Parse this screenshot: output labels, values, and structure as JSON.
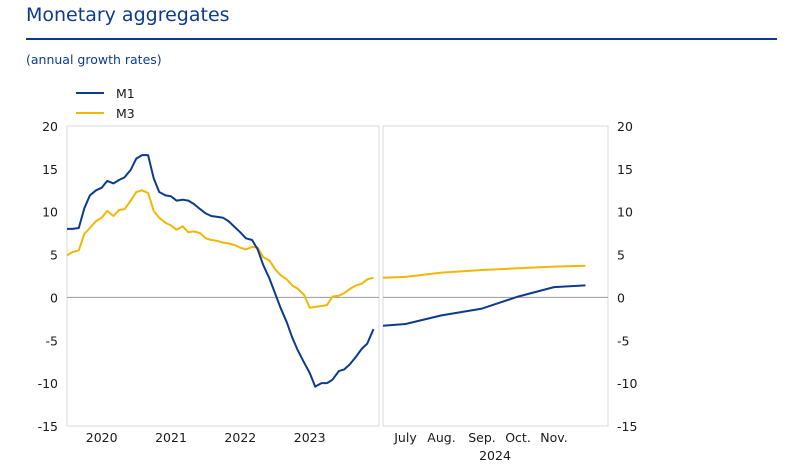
{
  "title": "Monetary aggregates",
  "subtitle": "(annual growth rates)",
  "chart_data": {
    "type": "line",
    "ylim": [
      -15,
      20
    ],
    "y_ticks": [
      20,
      15,
      10,
      5,
      0,
      -5,
      -10,
      -15
    ],
    "grid": false,
    "legend_position": "top-left",
    "colors": {
      "M1": "#0d3b8c",
      "M3": "#f2b705"
    },
    "series": [
      {
        "name": "M1"
      },
      {
        "name": "M3"
      }
    ],
    "left_panel": {
      "x_range": [
        2019.5,
        2024.0
      ],
      "x_tick_labels": [
        "2020",
        "2021",
        "2022",
        "2023"
      ],
      "x_tick_positions": [
        2020.0,
        2021.0,
        2022.0,
        2023.0
      ],
      "series": [
        {
          "name": "M1",
          "x": [
            2019.5,
            2019.58,
            2019.67,
            2019.75,
            2019.83,
            2019.92,
            2020.0,
            2020.08,
            2020.17,
            2020.25,
            2020.33,
            2020.42,
            2020.5,
            2020.58,
            2020.67,
            2020.75,
            2020.83,
            2020.92,
            2021.0,
            2021.08,
            2021.17,
            2021.25,
            2021.33,
            2021.42,
            2021.5,
            2021.58,
            2021.67,
            2021.75,
            2021.83,
            2021.92,
            2022.0,
            2022.08,
            2022.17,
            2022.25,
            2022.33,
            2022.42,
            2022.5,
            2022.58,
            2022.67,
            2022.75,
            2022.83,
            2022.92,
            2023.0,
            2023.08,
            2023.17,
            2023.25,
            2023.33,
            2023.42,
            2023.5,
            2023.58,
            2023.67,
            2023.75,
            2023.83,
            2023.92
          ],
          "values": [
            8.0,
            8.0,
            8.1,
            10.4,
            11.9,
            12.5,
            12.8,
            13.6,
            13.3,
            13.7,
            14.0,
            14.9,
            16.2,
            16.6,
            16.6,
            13.9,
            12.3,
            11.9,
            11.8,
            11.3,
            11.4,
            11.3,
            10.9,
            10.3,
            9.8,
            9.5,
            9.4,
            9.3,
            8.9,
            8.2,
            7.6,
            6.9,
            6.7,
            5.6,
            3.8,
            2.2,
            0.5,
            -1.2,
            -2.9,
            -4.7,
            -6.2,
            -7.6,
            -8.8,
            -10.4,
            -10.0,
            -10.0,
            -9.6,
            -8.6,
            -8.4,
            -7.8,
            -6.9,
            -6.0,
            -5.4,
            -3.7
          ]
        },
        {
          "name": "M3",
          "x": [
            2019.5,
            2019.58,
            2019.67,
            2019.75,
            2019.83,
            2019.92,
            2020.0,
            2020.08,
            2020.17,
            2020.25,
            2020.33,
            2020.42,
            2020.5,
            2020.58,
            2020.67,
            2020.75,
            2020.83,
            2020.92,
            2021.0,
            2021.08,
            2021.17,
            2021.25,
            2021.33,
            2021.42,
            2021.5,
            2021.58,
            2021.67,
            2021.75,
            2021.83,
            2021.92,
            2022.0,
            2022.08,
            2022.17,
            2022.25,
            2022.33,
            2022.42,
            2022.5,
            2022.58,
            2022.67,
            2022.75,
            2022.83,
            2022.92,
            2023.0,
            2023.08,
            2023.17,
            2023.25,
            2023.33,
            2023.42,
            2023.5,
            2023.58,
            2023.67,
            2023.75,
            2023.83,
            2023.92
          ],
          "values": [
            4.9,
            5.3,
            5.5,
            7.4,
            8.1,
            8.9,
            9.3,
            10.1,
            9.5,
            10.2,
            10.3,
            11.3,
            12.3,
            12.5,
            12.2,
            10.1,
            9.3,
            8.7,
            8.4,
            7.9,
            8.3,
            7.6,
            7.7,
            7.5,
            6.9,
            6.7,
            6.6,
            6.4,
            6.3,
            6.1,
            5.8,
            5.6,
            5.9,
            5.8,
            4.7,
            4.3,
            3.3,
            2.6,
            2.1,
            1.4,
            1.0,
            0.3,
            -1.2,
            -1.1,
            -1.0,
            -0.9,
            0.1,
            0.2,
            0.5,
            1.0,
            1.4,
            1.6,
            2.1,
            2.3
          ]
        }
      ]
    },
    "right_panel": {
      "x_range": [
        2024.45,
        2024.95
      ],
      "x_tick_labels": [
        "July",
        "Aug.",
        "Sep.",
        "Oct.",
        "Nov."
      ],
      "x_tick_positions": [
        2024.5,
        2024.58,
        2024.67,
        2024.75,
        2024.83
      ],
      "x_group_label": "2024",
      "series": [
        {
          "name": "M1",
          "x": [
            2024.45,
            2024.5,
            2024.58,
            2024.67,
            2024.75,
            2024.83,
            2024.9
          ],
          "values": [
            -3.3,
            -3.1,
            -2.1,
            -1.3,
            0.1,
            1.2,
            1.4
          ]
        },
        {
          "name": "M3",
          "x": [
            2024.45,
            2024.5,
            2024.58,
            2024.67,
            2024.75,
            2024.83,
            2024.9
          ],
          "values": [
            2.3,
            2.4,
            2.9,
            3.2,
            3.4,
            3.6,
            3.7
          ]
        }
      ]
    }
  }
}
